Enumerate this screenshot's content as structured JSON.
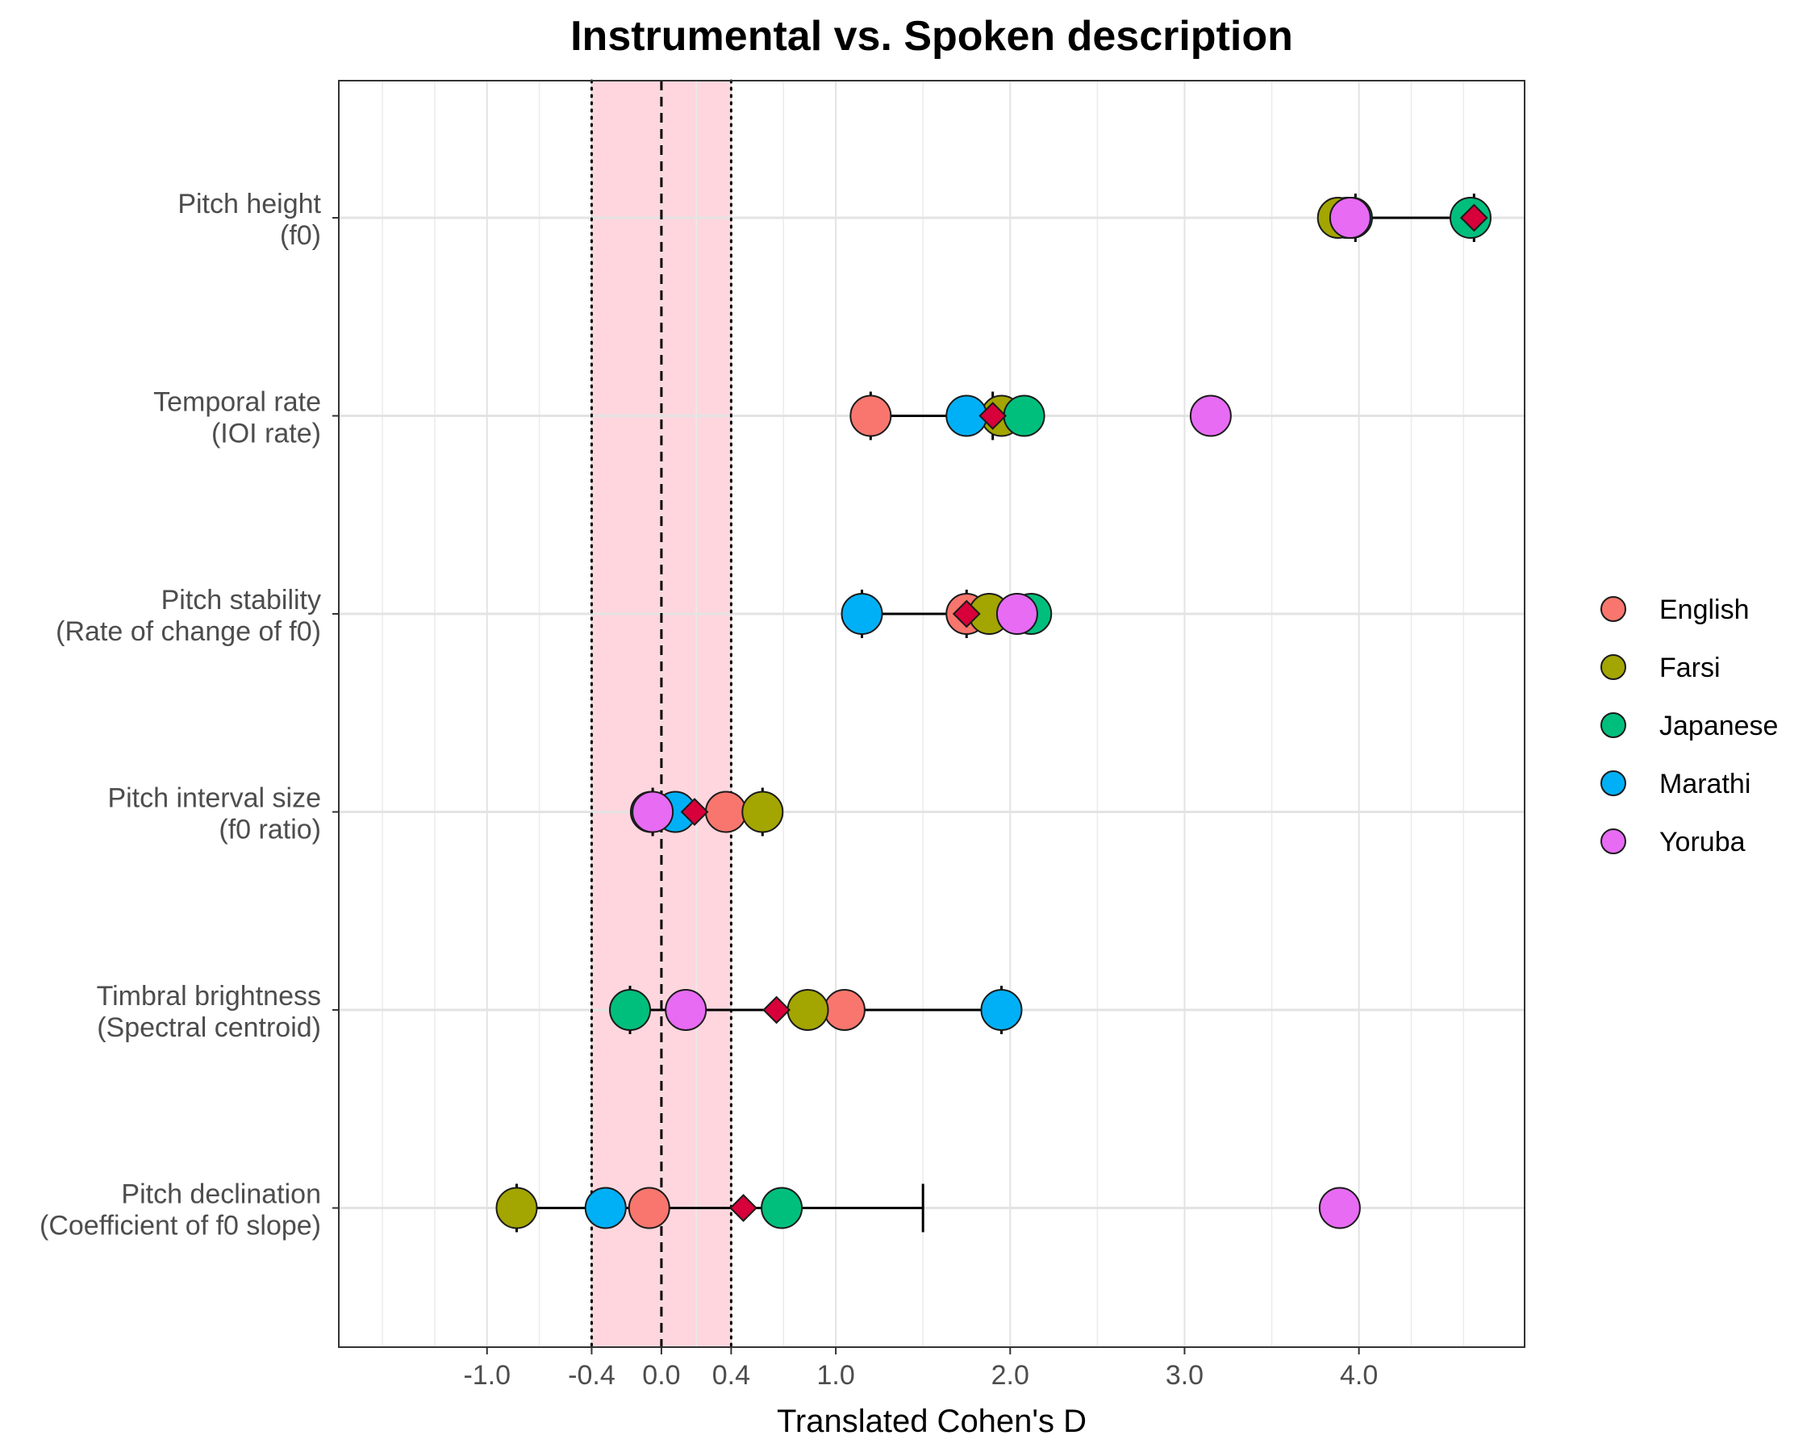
{
  "chart_data": {
    "type": "scatter",
    "title": "Instrumental vs. Spoken description",
    "xlabel": "Translated Cohen's D",
    "ylabel": "",
    "xlim": [
      -1.85,
      4.95
    ],
    "xticks": [
      -1.0,
      -0.4,
      0.0,
      0.4,
      1.0,
      2.0,
      3.0,
      4.0
    ],
    "xtick_labels": [
      "-1.0",
      "-0.4",
      "0.0",
      "0.4",
      "1.0",
      "2.0",
      "3.0",
      "4.0"
    ],
    "minor_gridlines": [
      -1.6,
      -1.3,
      -0.7,
      0.2,
      0.7,
      1.5,
      2.5,
      3.5,
      4.3,
      4.6
    ],
    "reference_band": [
      -0.4,
      0.4
    ],
    "reference_line": 0.0,
    "grid": true,
    "legend_position": "right",
    "categories": [
      {
        "line1": "Pitch height",
        "line2": "(f0)"
      },
      {
        "line1": "Temporal rate",
        "line2": "(IOI rate)"
      },
      {
        "line1": "Pitch stability",
        "line2": "(Rate of change of f0)"
      },
      {
        "line1": "Pitch interval size",
        "line2": "(f0 ratio)"
      },
      {
        "line1": "Timbral brightness",
        "line2": "(Spectral centroid)"
      },
      {
        "line1": "Pitch declination",
        "line2": "(Coefficient of f0 slope)"
      }
    ],
    "series": [
      {
        "name": "English",
        "color": "#F8766D",
        "values": [
          3.93,
          1.2,
          1.75,
          0.37,
          1.05,
          -0.07
        ]
      },
      {
        "name": "Farsi",
        "color": "#A3A500",
        "values": [
          3.88,
          1.95,
          1.88,
          0.58,
          0.84,
          -0.83
        ]
      },
      {
        "name": "Japanese",
        "color": "#00BF7D",
        "values": [
          4.64,
          2.08,
          2.12,
          -0.06,
          -0.18,
          0.69
        ]
      },
      {
        "name": "Marathi",
        "color": "#00B0F6",
        "values": [
          3.96,
          1.75,
          1.15,
          0.08,
          1.95,
          -0.32
        ]
      },
      {
        "name": "Yoruba",
        "color": "#E76BF3",
        "values": [
          3.95,
          3.15,
          2.04,
          -0.05,
          0.14,
          3.89
        ]
      }
    ],
    "pooled": {
      "color": "#D7003A",
      "values": [
        4.66,
        1.9,
        1.75,
        0.19,
        0.66,
        0.47
      ],
      "interval_low": [
        3.98,
        1.2,
        1.15,
        -0.05,
        -0.18,
        -0.83
      ],
      "interval_high": [
        4.66,
        1.9,
        1.75,
        0.58,
        1.95,
        1.5
      ]
    }
  }
}
